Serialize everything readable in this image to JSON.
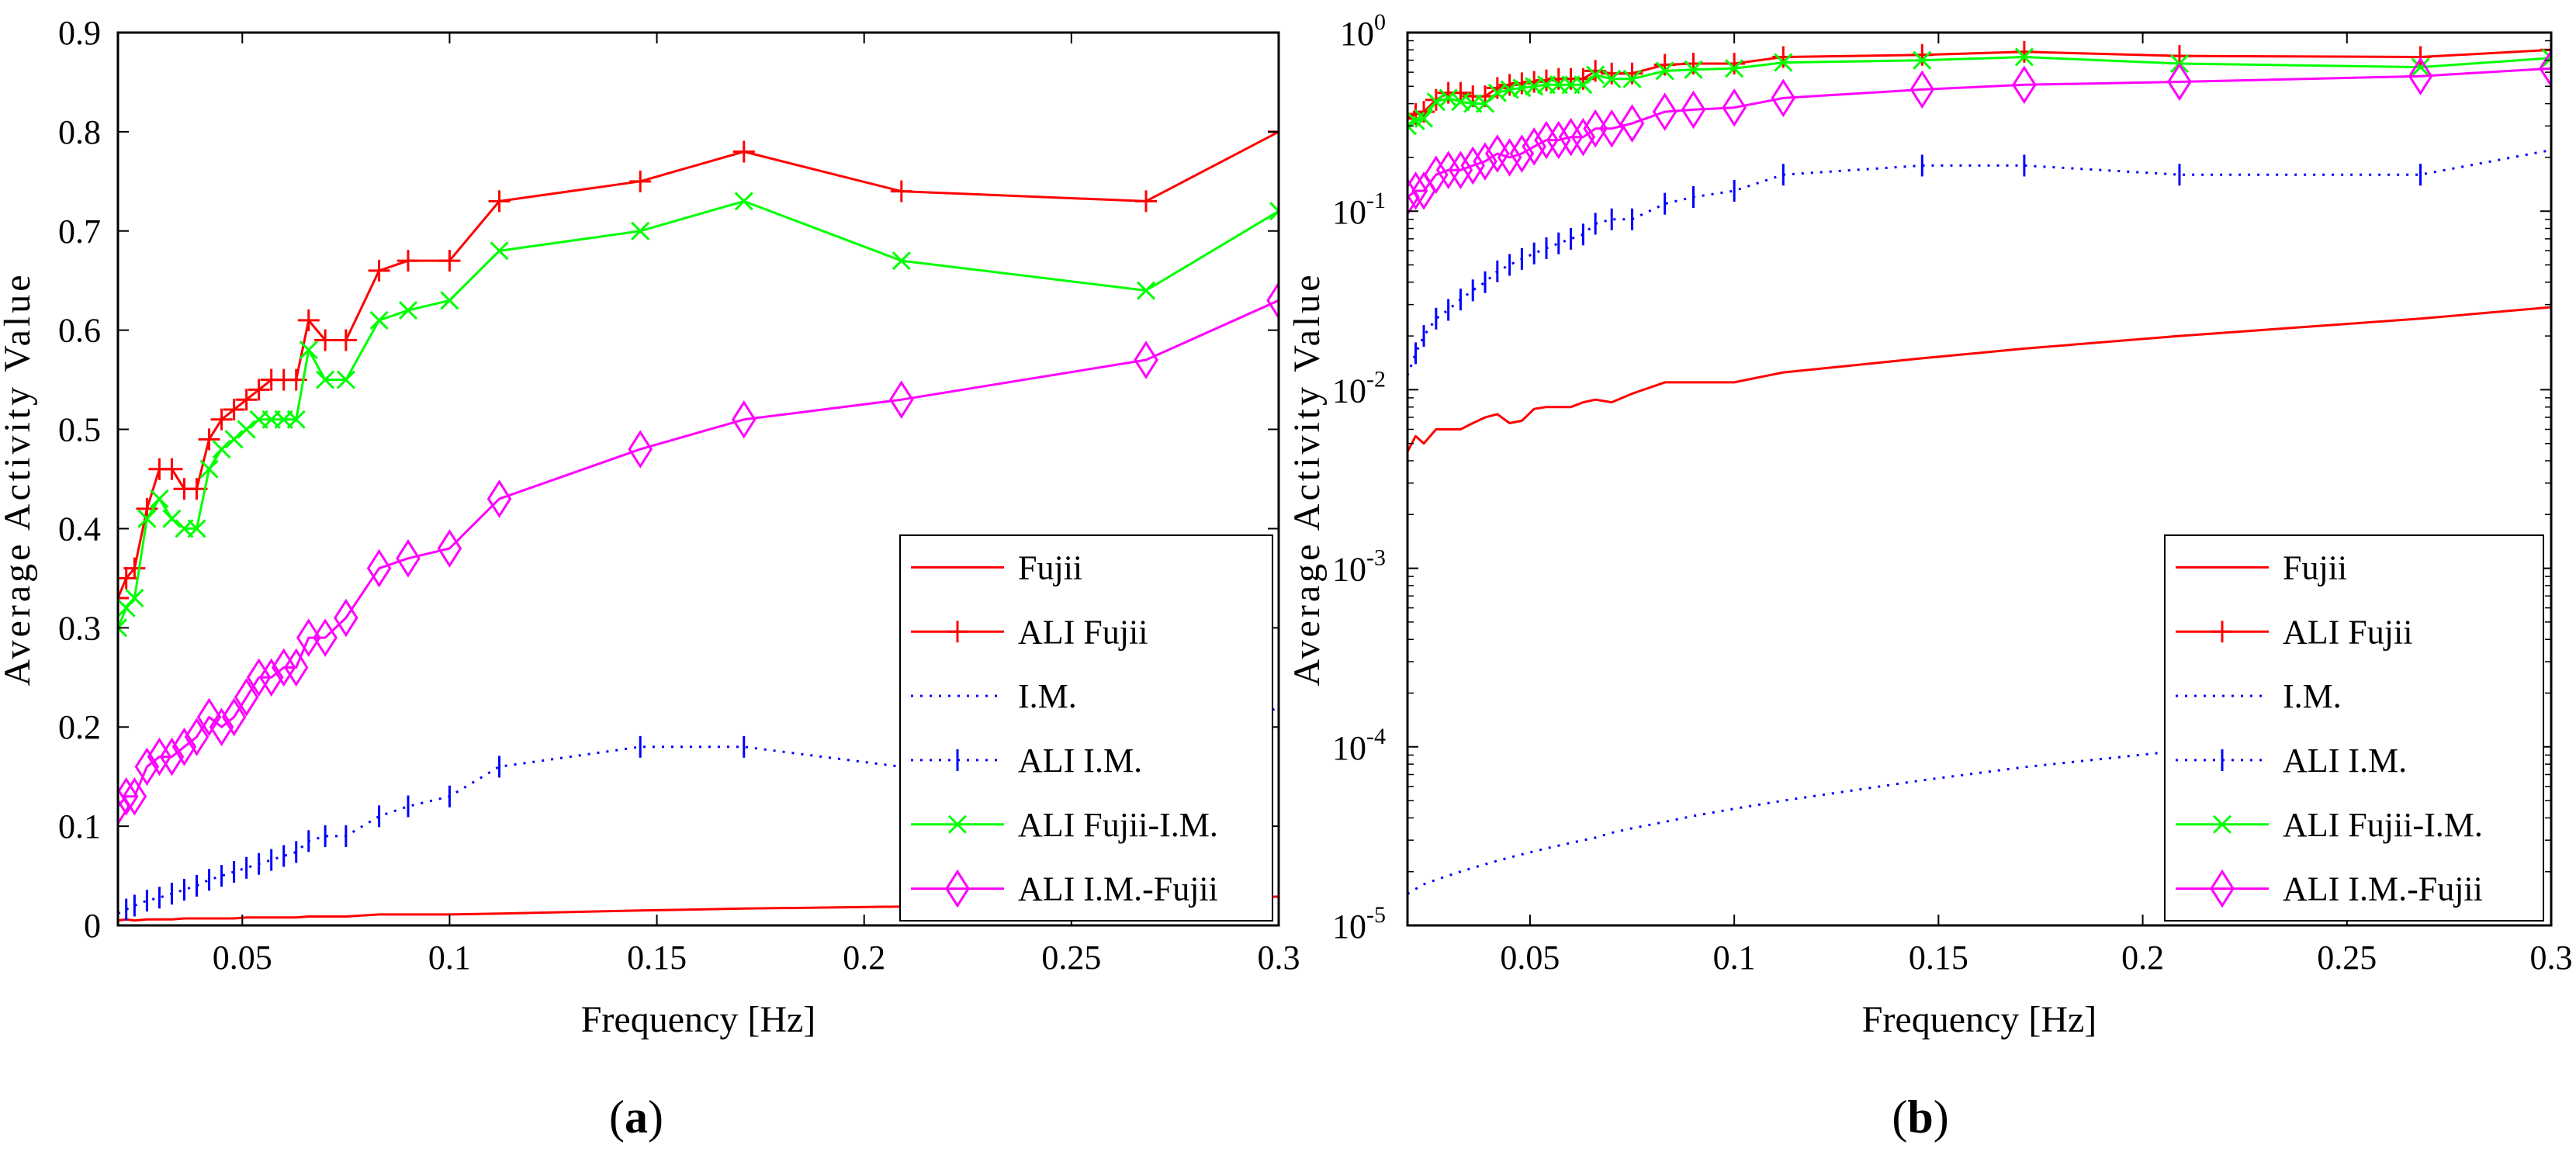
{
  "chart_data": [
    {
      "type": "line",
      "panel_label": "a",
      "xlabel": "Frequency [Hz]",
      "ylabel": "Average Activity Value",
      "xlim": [
        0.02,
        0.3
      ],
      "ylim": [
        0,
        0.9
      ],
      "yscale": "linear",
      "xticks": [
        0.05,
        0.1,
        0.15,
        0.2,
        0.25,
        0.3
      ],
      "xtick_labels": [
        "0.05",
        "0.1",
        "0.15",
        "0.2",
        "0.25",
        "0.3"
      ],
      "yticks": [
        0,
        0.1,
        0.2,
        0.3,
        0.4,
        0.5,
        0.6,
        0.7,
        0.8,
        0.9
      ],
      "ytick_labels": [
        "0",
        "0.1",
        "0.2",
        "0.3",
        "0.4",
        "0.5",
        "0.6",
        "0.7",
        "0.8",
        "0.9"
      ],
      "grid": false,
      "legend_position": "bottom-right",
      "x": [
        0.02,
        0.022,
        0.024,
        0.027,
        0.03,
        0.033,
        0.036,
        0.039,
        0.042,
        0.045,
        0.048,
        0.051,
        0.054,
        0.057,
        0.06,
        0.063,
        0.066,
        0.07,
        0.075,
        0.083,
        0.09,
        0.1,
        0.112,
        0.146,
        0.171,
        0.209,
        0.268,
        0.3
      ],
      "series": [
        {
          "name": "Fujii",
          "color": "#ff0000",
          "style": "solid",
          "marker": "none",
          "values": [
            0.005,
            0.006,
            0.005,
            0.006,
            0.006,
            0.006,
            0.007,
            0.007,
            0.007,
            0.007,
            0.007,
            0.008,
            0.008,
            0.008,
            0.008,
            0.008,
            0.009,
            0.009,
            0.009,
            0.011,
            0.011,
            0.011,
            0.012,
            0.015,
            0.017,
            0.019,
            0.025,
            0.029
          ]
        },
        {
          "name": "ALI Fujii",
          "color": "#ff0000",
          "style": "solid",
          "marker": "plus",
          "values": [
            0.33,
            0.35,
            0.36,
            0.42,
            0.46,
            0.46,
            0.44,
            0.44,
            0.49,
            0.51,
            0.52,
            0.53,
            0.54,
            0.55,
            0.55,
            0.55,
            0.61,
            0.59,
            0.59,
            0.66,
            0.67,
            0.67,
            0.73,
            0.75,
            0.78,
            0.74,
            0.73,
            0.8
          ]
        },
        {
          "name": "I.M.",
          "color": "#0000ff",
          "style": "dotted",
          "marker": "none",
          "values": [
            0.0,
            0.0,
            0.0,
            0.0,
            0.0,
            0.0,
            0.0,
            0.0,
            0.0,
            0.0,
            0.0,
            0.0,
            0.0,
            0.0,
            0.0,
            0.0,
            0.0,
            0.0,
            0.0,
            0.0,
            0.0,
            0.0,
            0.0,
            0.0,
            0.0,
            0.0,
            0.0,
            0.0
          ]
        },
        {
          "name": "ALI I.M.",
          "color": "#0000ff",
          "style": "dotted",
          "marker": "vline",
          "values": [
            0.012,
            0.016,
            0.02,
            0.025,
            0.028,
            0.032,
            0.036,
            0.04,
            0.046,
            0.05,
            0.054,
            0.058,
            0.062,
            0.066,
            0.07,
            0.074,
            0.085,
            0.09,
            0.09,
            0.11,
            0.12,
            0.13,
            0.16,
            0.18,
            0.18,
            0.16,
            0.16,
            0.22
          ]
        },
        {
          "name": "ALI Fujii-I.M.",
          "color": "#00ff00",
          "style": "solid",
          "marker": "x",
          "values": [
            0.3,
            0.32,
            0.33,
            0.41,
            0.43,
            0.41,
            0.4,
            0.4,
            0.46,
            0.48,
            0.49,
            0.5,
            0.51,
            0.51,
            0.51,
            0.51,
            0.58,
            0.55,
            0.55,
            0.61,
            0.62,
            0.63,
            0.68,
            0.7,
            0.73,
            0.67,
            0.64,
            0.72
          ]
        },
        {
          "name": "ALI I.M.-Fujii",
          "color": "#ff00ff",
          "style": "solid",
          "marker": "diamond",
          "values": [
            0.12,
            0.13,
            0.13,
            0.16,
            0.17,
            0.17,
            0.18,
            0.19,
            0.21,
            0.2,
            0.21,
            0.23,
            0.25,
            0.25,
            0.26,
            0.26,
            0.29,
            0.29,
            0.31,
            0.36,
            0.37,
            0.38,
            0.43,
            0.48,
            0.51,
            0.53,
            0.57,
            0.63
          ]
        }
      ]
    },
    {
      "type": "line",
      "panel_label": "b",
      "xlabel": "Frequency [Hz]",
      "ylabel": "Average Activity Value",
      "xlim": [
        0.02,
        0.3
      ],
      "ylim": [
        1e-05,
        1
      ],
      "yscale": "log",
      "xticks": [
        0.05,
        0.1,
        0.15,
        0.2,
        0.25,
        0.3
      ],
      "xtick_labels": [
        "0.05",
        "0.1",
        "0.15",
        "0.2",
        "0.25",
        "0.3"
      ],
      "yticks": [
        1e-05,
        0.0001,
        0.001,
        0.01,
        0.1,
        1
      ],
      "ytick_bases": [
        "10",
        "10",
        "10",
        "10",
        "10",
        "10"
      ],
      "ytick_exponents": [
        "-5",
        "-4",
        "-3",
        "-2",
        "-1",
        "0"
      ],
      "grid": false,
      "legend_position": "bottom-right",
      "x": [
        0.02,
        0.022,
        0.024,
        0.027,
        0.03,
        0.033,
        0.036,
        0.039,
        0.042,
        0.045,
        0.048,
        0.051,
        0.054,
        0.057,
        0.06,
        0.063,
        0.066,
        0.07,
        0.075,
        0.083,
        0.09,
        0.1,
        0.112,
        0.146,
        0.171,
        0.209,
        0.268,
        0.3
      ],
      "series": [
        {
          "name": "Fujii",
          "color": "#ff0000",
          "style": "solid",
          "marker": "none",
          "values": [
            0.0045,
            0.0055,
            0.005,
            0.006,
            0.006,
            0.006,
            0.0065,
            0.007,
            0.0073,
            0.0065,
            0.0067,
            0.0078,
            0.008,
            0.008,
            0.008,
            0.0085,
            0.0088,
            0.0085,
            0.0095,
            0.011,
            0.011,
            0.011,
            0.0125,
            0.015,
            0.017,
            0.02,
            0.025,
            0.029
          ]
        },
        {
          "name": "ALI Fujii",
          "color": "#ff0000",
          "style": "solid",
          "marker": "plus",
          "values": [
            0.33,
            0.35,
            0.36,
            0.42,
            0.46,
            0.46,
            0.44,
            0.44,
            0.49,
            0.51,
            0.52,
            0.53,
            0.54,
            0.55,
            0.55,
            0.55,
            0.61,
            0.59,
            0.59,
            0.66,
            0.67,
            0.67,
            0.73,
            0.75,
            0.78,
            0.74,
            0.73,
            0.8
          ]
        },
        {
          "name": "I.M.",
          "color": "#0000ff",
          "style": "dotted",
          "marker": "none",
          "values": [
            1.5e-05,
            1.6e-05,
            1.7e-05,
            1.8e-05,
            1.9e-05,
            2e-05,
            2.1e-05,
            2.2e-05,
            2.3e-05,
            2.4e-05,
            2.5e-05,
            2.6e-05,
            2.7e-05,
            2.8e-05,
            2.9e-05,
            3e-05,
            3.1e-05,
            3.3e-05,
            3.5e-05,
            3.8e-05,
            4.1e-05,
            4.5e-05,
            5e-05,
            6.5e-05,
            7.7e-05,
            9.5e-05,
            0.00013,
            0.0002
          ]
        },
        {
          "name": "ALI I.M.",
          "color": "#0000ff",
          "style": "dotted",
          "marker": "vline",
          "values": [
            0.012,
            0.016,
            0.02,
            0.025,
            0.028,
            0.032,
            0.036,
            0.04,
            0.046,
            0.05,
            0.054,
            0.058,
            0.062,
            0.066,
            0.07,
            0.074,
            0.085,
            0.09,
            0.09,
            0.11,
            0.12,
            0.13,
            0.16,
            0.18,
            0.18,
            0.16,
            0.16,
            0.22
          ]
        },
        {
          "name": "ALI Fujii-I.M.",
          "color": "#00ff00",
          "style": "solid",
          "marker": "x",
          "values": [
            0.3,
            0.32,
            0.33,
            0.41,
            0.43,
            0.41,
            0.4,
            0.4,
            0.46,
            0.48,
            0.49,
            0.5,
            0.51,
            0.51,
            0.51,
            0.51,
            0.58,
            0.55,
            0.55,
            0.61,
            0.62,
            0.63,
            0.68,
            0.7,
            0.73,
            0.67,
            0.64,
            0.72
          ]
        },
        {
          "name": "ALI I.M.-Fujii",
          "color": "#ff00ff",
          "style": "solid",
          "marker": "diamond",
          "values": [
            0.12,
            0.13,
            0.13,
            0.16,
            0.17,
            0.17,
            0.18,
            0.19,
            0.21,
            0.2,
            0.21,
            0.23,
            0.25,
            0.25,
            0.26,
            0.26,
            0.29,
            0.29,
            0.31,
            0.36,
            0.37,
            0.38,
            0.43,
            0.48,
            0.51,
            0.53,
            0.57,
            0.63
          ]
        }
      ]
    }
  ]
}
